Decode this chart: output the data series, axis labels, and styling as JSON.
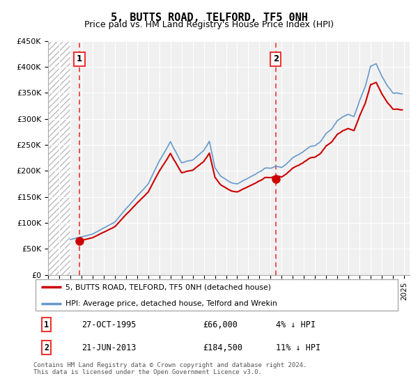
{
  "title": "5, BUTTS ROAD, TELFORD, TF5 0NH",
  "subtitle": "Price paid vs. HM Land Registry's House Price Index (HPI)",
  "xlim": [
    1993.0,
    2025.5
  ],
  "ylim": [
    0,
    450000
  ],
  "yticks": [
    0,
    50000,
    100000,
    150000,
    200000,
    250000,
    300000,
    350000,
    400000,
    450000
  ],
  "ytick_labels": [
    "£0",
    "£50K",
    "£100K",
    "£150K",
    "£200K",
    "£250K",
    "£300K",
    "£350K",
    "£400K",
    "£450K"
  ],
  "xticks": [
    1993,
    1994,
    1995,
    1996,
    1997,
    1998,
    1999,
    2000,
    2001,
    2002,
    2003,
    2004,
    2005,
    2006,
    2007,
    2008,
    2009,
    2010,
    2011,
    2012,
    2013,
    2014,
    2015,
    2016,
    2017,
    2018,
    2019,
    2020,
    2021,
    2022,
    2023,
    2024,
    2025
  ],
  "sale1_x": 1995.82,
  "sale1_y": 66000,
  "sale2_x": 2013.47,
  "sale2_y": 184500,
  "sale_color": "#cc0000",
  "hpi_color": "#6699cc",
  "vline_color": "#ee3333",
  "marker_size": 8,
  "legend_label1": "5, BUTTS ROAD, TELFORD, TF5 0NH (detached house)",
  "legend_label2": "HPI: Average price, detached house, Telford and Wrekin",
  "annotation1_label": "1",
  "annotation2_label": "2",
  "table_row1": [
    "1",
    "27-OCT-1995",
    "£66,000",
    "4% ↓ HPI"
  ],
  "table_row2": [
    "2",
    "21-JUN-2013",
    "£184,500",
    "11% ↓ HPI"
  ],
  "footnote": "Contains HM Land Registry data © Crown copyright and database right 2024.\nThis data is licensed under the Open Government Licence v3.0.",
  "bg_color": "#ffffff",
  "plot_bg": "#f0f0f0",
  "hatch_color": "#bbbbbb"
}
